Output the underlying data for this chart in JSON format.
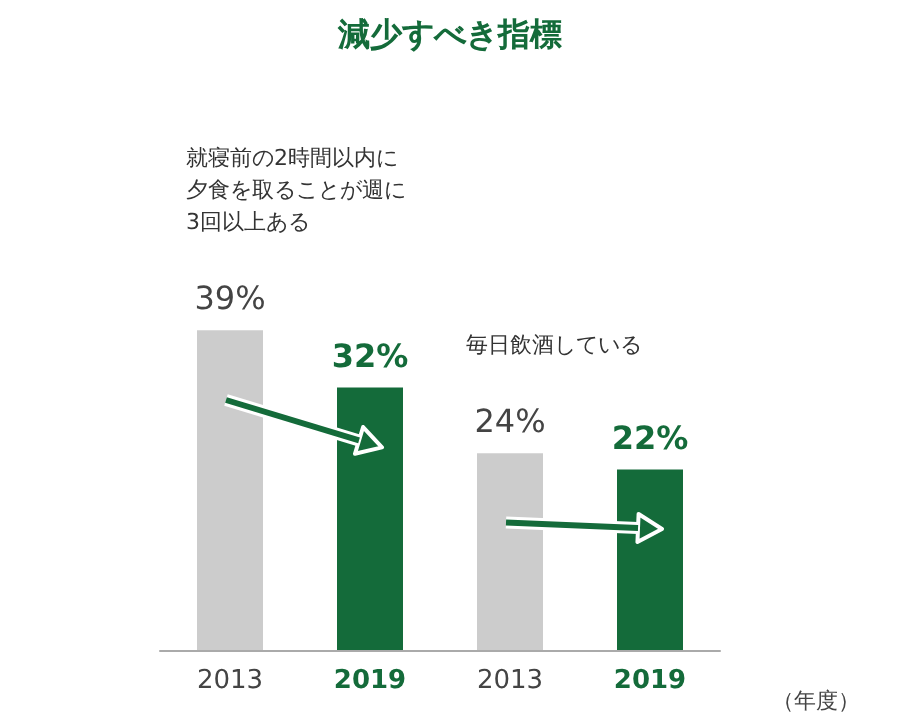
{
  "chart_data": {
    "type": "bar",
    "title": "減少すべき指標",
    "xlabel": "（年度）",
    "categories": [
      "2013",
      "2019",
      "2013",
      "2019"
    ],
    "values": [
      39,
      32,
      24,
      22
    ],
    "colors": [
      "#cccccc",
      "#146b3a",
      "#cccccc",
      "#146b3a"
    ],
    "value_labels": [
      "39%",
      "32%",
      "24%",
      "22%"
    ],
    "annotations": [
      "就寝前の2時間以内に夕食を取ることが週に3回以上ある",
      "毎日飲酒している"
    ]
  }
}
